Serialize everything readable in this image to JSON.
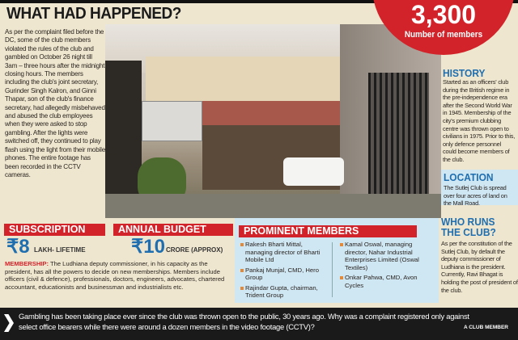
{
  "title": "WHAT HAD HAPPENED?",
  "story": "As per the complaint filed before the DC, some of the club members violated the rules of the club and gambled on October 26 night till 3am – three hours after the midnight closing hours. The members including the club's joint secretary, Gurinder Singh Kalron, and Ginni Thapar, son of the club's finance secretary, had allegedly misbehaved and abused the club employees when they were asked to stop gambling. After the lights were switched off, they continued to play flash using the light from their mobile phones. The entire footage has been recorded in the CCTV cameras.",
  "members_stat": {
    "value": "3,300",
    "label": "Number of members"
  },
  "history": {
    "heading": "HISTORY",
    "text": "Started as an officers' club during the British regime in the pre-independence era after the Second World War in 1945. Membership of the city's premium clubbing centre was thrown open to civilians in 1975. Prior to this, only defence personnel could become members of the club."
  },
  "location": {
    "heading": "LOCATION",
    "text": "The Sutlej Club is spread over four acres of land on the Mall Road."
  },
  "who_runs": {
    "heading": "WHO RUNS THE CLUB?",
    "text": "As per the constitution of the Sutlej Club, by default the deputy commissioner of Ludhiana is the president. Currently, Ravi Bhagat is holding the post of president of the club."
  },
  "subscription": {
    "heading": "SUBSCRIPTION",
    "amount": "₹8",
    "unit": "LAKH- LIFETIME"
  },
  "budget": {
    "heading": "ANNUAL BUDGET",
    "amount": "₹10",
    "unit": "CRORE (APPROX)"
  },
  "membership": {
    "label": "MEMBERSHIP:",
    "text": " The Ludhiana deputy commissioner, in his capacity as the president, has all the powers to decide on new memberships. Members include officers (civil & defence), professionals, doctors, engineers, advocates, chartered accountant, educationists and businessman and industrialists etc."
  },
  "prominent": {
    "heading": "PROMINENT MEMBERS",
    "left": [
      "Rakesh Bharti Mittal, managing director of Bharti Mobile Ltd",
      "Pankaj Munjal, CMD, Hero Group",
      "Rajindar Gupta, chairman, Trident Group"
    ],
    "right": [
      "Kamal Oswal, managing director, Nahar Industrial Enterprises Limited (Oswal Textiles)",
      "Onkar Pahwa, CMD, Avon Cycles"
    ]
  },
  "quote": {
    "text": "Gambling has been taking place ever since the club was thrown open to the public, 30 years ago. Why was a complaint registered only against select office bearers while there were around a dozen members in the video footage (CCTV)?",
    "attribution": "A CLUB MEMBER"
  },
  "colors": {
    "red": "#d2232a",
    "blue": "#1f6fb0",
    "panel": "#cfe6f3",
    "background": "#efe6cf"
  }
}
